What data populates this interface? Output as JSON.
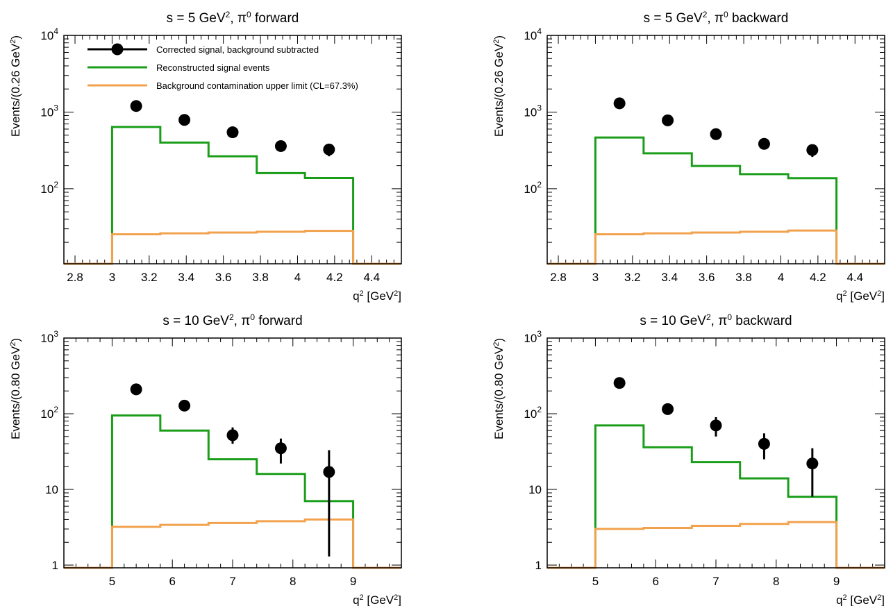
{
  "colors": {
    "data": "#000000",
    "signal": "#1a9e1a",
    "background": "#f2a24e"
  },
  "legend": {
    "data": "Corrected signal, background subtracted",
    "signal": "Reconstructed signal events",
    "background": "Background contamination upper limit (CL=67.3%)"
  },
  "chart_data": [
    {
      "type": "histogram",
      "title": {
        "pre": "s =  5 GeV",
        "sup1": "2",
        "mid": ", π",
        "sup2": "0",
        "post": " forward"
      },
      "xlabel": {
        "pre": "q",
        "sup1": "2",
        "mid": " [GeV",
        "sup2": "2",
        "post": "]"
      },
      "ylabel": {
        "pre": "Events/(0.26 GeV",
        "sup": "2",
        "post": ")"
      },
      "log_y": true,
      "xlim": [
        2.74,
        4.56
      ],
      "ylim": [
        10.5,
        10000
      ],
      "x_ticks": [
        "2.8",
        "3",
        "3.2",
        "3.4",
        "3.6",
        "3.8",
        "4",
        "4.2",
        "4.4"
      ],
      "y_ticks": [
        {
          "v": 100,
          "b": "10",
          "e": "2"
        },
        {
          "v": 1000,
          "b": "10",
          "e": "3"
        },
        {
          "v": 10000,
          "b": "10",
          "e": "4"
        }
      ],
      "legend_visible": true,
      "bin_edges": [
        3.0,
        3.26,
        3.52,
        3.78,
        4.04,
        4.3
      ],
      "signal": [
        640,
        400,
        265,
        160,
        138
      ],
      "background": [
        25.5,
        26.2,
        26.8,
        27.5,
        28.2
      ],
      "data_points": [
        {
          "x": 3.13,
          "y": 1200,
          "lo": 1130,
          "hi": 1270
        },
        {
          "x": 3.39,
          "y": 790,
          "lo": 740,
          "hi": 840
        },
        {
          "x": 3.65,
          "y": 545,
          "lo": 505,
          "hi": 585
        },
        {
          "x": 3.91,
          "y": 360,
          "lo": 315,
          "hi": 400
        },
        {
          "x": 4.17,
          "y": 325,
          "lo": 265,
          "hi": 380
        }
      ]
    },
    {
      "type": "histogram",
      "title": {
        "pre": "s =  5 GeV",
        "sup1": "2",
        "mid": ", π",
        "sup2": "0",
        "post": " backward"
      },
      "xlabel": {
        "pre": "q",
        "sup1": "2",
        "mid": " [GeV",
        "sup2": "2",
        "post": "]"
      },
      "ylabel": {
        "pre": "Events/(0.26 GeV",
        "sup": "2",
        "post": ")"
      },
      "log_y": true,
      "xlim": [
        2.74,
        4.56
      ],
      "ylim": [
        10.5,
        10000
      ],
      "x_ticks": [
        "2.8",
        "3",
        "3.2",
        "3.4",
        "3.6",
        "3.8",
        "4",
        "4.2",
        "4.4"
      ],
      "y_ticks": [
        {
          "v": 100,
          "b": "10",
          "e": "2"
        },
        {
          "v": 1000,
          "b": "10",
          "e": "3"
        },
        {
          "v": 10000,
          "b": "10",
          "e": "4"
        }
      ],
      "legend_visible": false,
      "bin_edges": [
        3.0,
        3.26,
        3.52,
        3.78,
        4.04,
        4.3
      ],
      "signal": [
        465,
        290,
        198,
        155,
        137
      ],
      "background": [
        25.5,
        26.2,
        26.8,
        27.5,
        28.5
      ],
      "data_points": [
        {
          "x": 3.13,
          "y": 1300,
          "lo": 1220,
          "hi": 1370
        },
        {
          "x": 3.39,
          "y": 780,
          "lo": 730,
          "hi": 830
        },
        {
          "x": 3.65,
          "y": 515,
          "lo": 475,
          "hi": 555
        },
        {
          "x": 3.91,
          "y": 385,
          "lo": 340,
          "hi": 425
        },
        {
          "x": 4.17,
          "y": 320,
          "lo": 260,
          "hi": 375
        }
      ]
    },
    {
      "type": "histogram",
      "title": {
        "pre": "s =  10 GeV",
        "sup1": "2",
        "mid": ", π",
        "sup2": "0",
        "post": " forward"
      },
      "xlabel": {
        "pre": "q",
        "sup1": "2",
        "mid": " [GeV",
        "sup2": "2",
        "post": "]"
      },
      "ylabel": {
        "pre": "Events/(0.80 GeV",
        "sup": "2",
        "post": ")"
      },
      "log_y": true,
      "xlim": [
        4.2,
        9.8
      ],
      "ylim": [
        0.92,
        1000
      ],
      "x_ticks": [
        "5",
        "6",
        "7",
        "8",
        "9"
      ],
      "y_ticks": [
        {
          "v": 1,
          "t": "1"
        },
        {
          "v": 10,
          "t": "10"
        },
        {
          "v": 100,
          "b": "10",
          "e": "2"
        },
        {
          "v": 1000,
          "b": "10",
          "e": "3"
        }
      ],
      "legend_visible": false,
      "bin_edges": [
        5.0,
        5.8,
        6.6,
        7.4,
        8.2,
        9.0
      ],
      "signal": [
        95,
        60,
        25,
        16,
        7
      ],
      "background": [
        3.2,
        3.4,
        3.6,
        3.8,
        4.0
      ],
      "data_points": [
        {
          "x": 5.4,
          "y": 210,
          "lo": 198,
          "hi": 222
        },
        {
          "x": 6.2,
          "y": 128,
          "lo": 120,
          "hi": 138
        },
        {
          "x": 7.0,
          "y": 52,
          "lo": 40,
          "hi": 66
        },
        {
          "x": 7.8,
          "y": 35,
          "lo": 22,
          "hi": 47
        },
        {
          "x": 8.6,
          "y": 17,
          "lo": 1.3,
          "hi": 33
        }
      ]
    },
    {
      "type": "histogram",
      "title": {
        "pre": "s =  10 GeV",
        "sup1": "2",
        "mid": ", π",
        "sup2": "0",
        "post": " backward"
      },
      "xlabel": {
        "pre": "q",
        "sup1": "2",
        "mid": " [GeV",
        "sup2": "2",
        "post": "]"
      },
      "ylabel": {
        "pre": "Events/(0.80 GeV",
        "sup": "2",
        "post": ")"
      },
      "log_y": true,
      "xlim": [
        4.2,
        9.8
      ],
      "ylim": [
        0.92,
        1000
      ],
      "x_ticks": [
        "5",
        "6",
        "7",
        "8",
        "9"
      ],
      "y_ticks": [
        {
          "v": 1,
          "t": "1"
        },
        {
          "v": 10,
          "t": "10"
        },
        {
          "v": 100,
          "b": "10",
          "e": "2"
        },
        {
          "v": 1000,
          "b": "10",
          "e": "3"
        }
      ],
      "legend_visible": false,
      "bin_edges": [
        5.0,
        5.8,
        6.6,
        7.4,
        8.2,
        9.0
      ],
      "signal": [
        70,
        36,
        23,
        14,
        8
      ],
      "background": [
        3.0,
        3.1,
        3.3,
        3.5,
        3.7
      ],
      "data_points": [
        {
          "x": 5.4,
          "y": 255,
          "lo": 243,
          "hi": 268
        },
        {
          "x": 6.2,
          "y": 115,
          "lo": 100,
          "hi": 130
        },
        {
          "x": 7.0,
          "y": 70,
          "lo": 50,
          "hi": 90
        },
        {
          "x": 7.8,
          "y": 40,
          "lo": 25,
          "hi": 55
        },
        {
          "x": 8.6,
          "y": 22,
          "lo": 8,
          "hi": 35
        }
      ]
    }
  ]
}
